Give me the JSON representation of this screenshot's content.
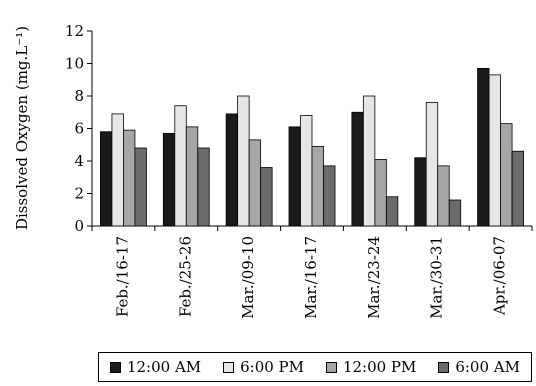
{
  "chart_data": {
    "type": "bar",
    "ylabel": "Dissolved Oxygen (mg.L⁻¹)",
    "ylim": [
      0,
      12
    ],
    "yticks": [
      0,
      2,
      4,
      6,
      8,
      10,
      12
    ],
    "grid": false,
    "legend_position": "bottom",
    "categories": [
      "Feb./16-17",
      "Feb./25-26",
      "Mar./09-10",
      "Mar./16-17",
      "Mar./23-24",
      "Mar./30-31",
      "Apr./06-07"
    ],
    "series": [
      {
        "name": "12:00 AM",
        "color": "#1a1a1a",
        "values": [
          5.8,
          5.7,
          6.9,
          6.1,
          7.0,
          4.2,
          9.7
        ]
      },
      {
        "name": "6:00 PM",
        "color": "#e6e6e6",
        "values": [
          6.9,
          7.4,
          8.0,
          6.8,
          8.0,
          7.6,
          9.3
        ]
      },
      {
        "name": "12:00 PM",
        "color": "#a6a6a6",
        "values": [
          5.9,
          6.1,
          5.3,
          4.9,
          4.1,
          3.7,
          6.3
        ]
      },
      {
        "name": "6:00 AM",
        "color": "#6b6b6b",
        "values": [
          4.8,
          4.8,
          3.6,
          3.7,
          1.8,
          1.6,
          4.6
        ]
      }
    ]
  }
}
